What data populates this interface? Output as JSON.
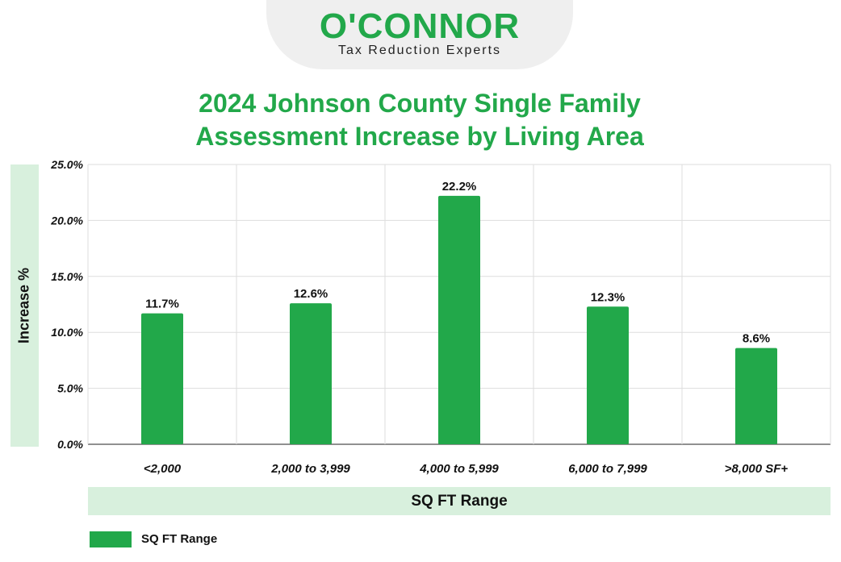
{
  "logo": {
    "wordmark": "O'CONNOR",
    "tagline": "Tax Reduction Experts"
  },
  "chart_data": {
    "type": "bar",
    "title_lines": [
      "2024 Johnson County Single Family",
      "Assessment Increase by Living Area"
    ],
    "xlabel": "SQ FT Range",
    "ylabel": "Increase %",
    "categories": [
      "<2,000",
      "2,000 to 3,999",
      "4,000 to 5,999",
      "6,000 to 7,999",
      ">8,000 SF+"
    ],
    "series": [
      {
        "name": "SQ FT Range",
        "values": [
          11.7,
          12.6,
          22.2,
          12.3,
          8.6
        ],
        "color": "#22a84a"
      }
    ],
    "data_labels": [
      "11.7%",
      "12.6%",
      "22.2%",
      "12.3%",
      "8.6%"
    ],
    "y_ticks": [
      "0.0%",
      "5.0%",
      "10.0%",
      "15.0%",
      "20.0%",
      "25.0%"
    ],
    "ylim": [
      0,
      25
    ],
    "grid": true,
    "legend_position": "bottom-left"
  },
  "colors": {
    "accent": "#22a84a",
    "band": "#d8f0dd",
    "grid": "#dddddd"
  }
}
